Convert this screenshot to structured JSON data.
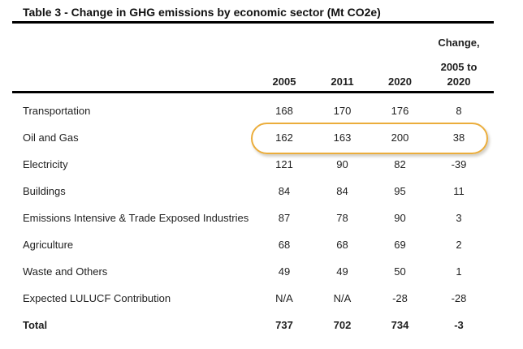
{
  "title": "Table 3 - Change in GHG emissions by economic sector (Mt CO2e)",
  "header": {
    "years": [
      "2005",
      "2011",
      "2020"
    ],
    "change_lines": [
      "Change,",
      "2005 to",
      "2020"
    ]
  },
  "table": {
    "rows": [
      {
        "label": "Transportation",
        "values": [
          "168",
          "170",
          "176",
          "8"
        ]
      },
      {
        "label": "Oil and Gas",
        "values": [
          "162",
          "163",
          "200",
          "38"
        ]
      },
      {
        "label": "Electricity",
        "values": [
          "121",
          "90",
          "82",
          "-39"
        ]
      },
      {
        "label": "Buildings",
        "values": [
          "84",
          "84",
          "95",
          "11"
        ]
      },
      {
        "label": "Emissions Intensive & Trade Exposed Industries",
        "values": [
          "87",
          "78",
          "90",
          "3"
        ]
      },
      {
        "label": "Agriculture",
        "values": [
          "68",
          "68",
          "69",
          "2"
        ]
      },
      {
        "label": "Waste and Others",
        "values": [
          "49",
          "49",
          "50",
          "1"
        ]
      },
      {
        "label": "Expected LULUCF Contribution",
        "values": [
          "N/A",
          "N/A",
          "-28",
          "-28"
        ]
      },
      {
        "label": "Total",
        "values": [
          "737",
          "702",
          "734",
          "-3"
        ]
      }
    ]
  },
  "highlight": {
    "row_label": "Oil and Gas",
    "color": "#EBAD3B"
  },
  "colors": {
    "text": "#1f1f1f",
    "rule": "#000000",
    "background": "#ffffff"
  },
  "chart_data": {
    "type": "table",
    "title": "Table 3 - Change in GHG emissions by economic sector (Mt CO2e)",
    "columns": [
      "Sector",
      "2005",
      "2011",
      "2020",
      "Change, 2005 to 2020"
    ],
    "rows": [
      [
        "Transportation",
        168,
        170,
        176,
        8
      ],
      [
        "Oil and Gas",
        162,
        163,
        200,
        38
      ],
      [
        "Electricity",
        121,
        90,
        82,
        -39
      ],
      [
        "Buildings",
        84,
        84,
        95,
        11
      ],
      [
        "Emissions Intensive & Trade Exposed Industries",
        87,
        78,
        90,
        3
      ],
      [
        "Agriculture",
        68,
        68,
        69,
        2
      ],
      [
        "Waste and Others",
        49,
        49,
        50,
        1
      ],
      [
        "Expected LULUCF Contribution",
        null,
        null,
        -28,
        -28
      ],
      [
        "Total",
        737,
        702,
        734,
        -3
      ]
    ],
    "na_cells": "Expected LULUCF Contribution shows N/A for 2005 and 2011",
    "annotation": "Oil and Gas row values circled with an orange oval highlight"
  }
}
